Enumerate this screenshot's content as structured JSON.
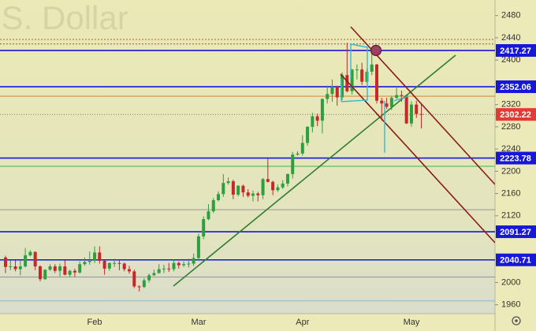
{
  "chart_data": {
    "type": "candlestick",
    "watermark": ".S. Dollar",
    "categories": [
      null,
      null,
      null,
      null,
      null,
      null,
      null,
      null,
      null,
      null,
      null,
      null,
      null,
      null,
      null,
      null,
      null,
      null,
      "Feb",
      null,
      null,
      null,
      null,
      null,
      null,
      null,
      null,
      null,
      null,
      null,
      null,
      null,
      null,
      null,
      null,
      null,
      null,
      null,
      null,
      "Mar",
      null,
      null,
      null,
      null,
      null,
      null,
      null,
      null,
      null,
      null,
      null,
      null,
      null,
      null,
      null,
      null,
      null,
      null,
      null,
      null,
      "Apr",
      null,
      null,
      null,
      null,
      null,
      null,
      null,
      null,
      null,
      null,
      null,
      null,
      null,
      null,
      null,
      null,
      null,
      null,
      null,
      null,
      null,
      "May",
      null,
      null
    ],
    "open": [
      2045,
      2028,
      2029,
      2024,
      2029,
      2049,
      2055,
      2029,
      2006,
      2023,
      2029,
      2021,
      2029,
      2014,
      2021,
      2018,
      2033,
      2037,
      2039,
      2054,
      2039,
      2025,
      2035,
      2035,
      2034,
      2024,
      2020,
      1993,
      1992,
      2004,
      2013,
      2017,
      2024,
      2025,
      2024,
      2035,
      2031,
      2033,
      2034,
      2044,
      2083,
      2114,
      2128,
      2148,
      2159,
      2179,
      2182,
      2158,
      2174,
      2162,
      2156,
      2160,
      2157,
      2186,
      2181,
      2166,
      2171,
      2178,
      2195,
      2230,
      2232,
      2251,
      2280,
      2299,
      2291,
      2330,
      2339,
      2352,
      2333,
      2373,
      2344,
      2383,
      2383,
      2361,
      2379,
      2392,
      2327,
      2322,
      2316,
      2332,
      2337,
      2336,
      2286,
      2320,
      2303
    ],
    "high": [
      2048,
      2040,
      2040,
      2040,
      2062,
      2058,
      2056,
      2031,
      2024,
      2033,
      2033,
      2034,
      2040,
      2023,
      2025,
      2038,
      2045,
      2056,
      2065,
      2065,
      2040,
      2036,
      2043,
      2040,
      2036,
      2030,
      2023,
      1995,
      2008,
      2016,
      2023,
      2033,
      2032,
      2035,
      2041,
      2038,
      2038,
      2043,
      2052,
      2088,
      2119,
      2141,
      2152,
      2164,
      2195,
      2189,
      2185,
      2175,
      2176,
      2168,
      2165,
      2163,
      2188,
      2223,
      2183,
      2176,
      2184,
      2196,
      2235,
      2236,
      2265,
      2281,
      2305,
      2304,
      2331,
      2354,
      2365,
      2354,
      2378,
      2431,
      2384,
      2392,
      2395,
      2385,
      2418,
      2393,
      2332,
      2332,
      2336,
      2352,
      2345,
      2337,
      2326,
      2327,
      2322
    ],
    "low": [
      2017,
      2022,
      2020,
      2013,
      2027,
      2047,
      2022,
      2002,
      2005,
      2021,
      2017,
      2011,
      2013,
      2010,
      2010,
      2016,
      2030,
      2032,
      2035,
      2034,
      2014,
      2021,
      2028,
      2022,
      2020,
      2016,
      1990,
      1984,
      1990,
      2000,
      2012,
      2016,
      2017,
      2019,
      2020,
      2025,
      2028,
      2027,
      2030,
      2039,
      2078,
      2112,
      2125,
      2146,
      2154,
      2176,
      2150,
      2155,
      2154,
      2153,
      2146,
      2146,
      2150,
      2180,
      2157,
      2163,
      2168,
      2173,
      2187,
      2228,
      2228,
      2246,
      2270,
      2281,
      2268,
      2322,
      2325,
      2318,
      2328,
      2342,
      2338,
      2365,
      2355,
      2359,
      2373,
      2322,
      2291,
      2312,
      2310,
      2330,
      2325,
      2285,
      2280,
      2296,
      2277
    ],
    "close": [
      2028,
      2029,
      2024,
      2029,
      2049,
      2055,
      2029,
      2006,
      2023,
      2029,
      2021,
      2029,
      2014,
      2021,
      2018,
      2033,
      2037,
      2039,
      2054,
      2039,
      2025,
      2035,
      2035,
      2034,
      2024,
      2020,
      1993,
      1992,
      2004,
      2013,
      2017,
      2024,
      2025,
      2024,
      2035,
      2031,
      2033,
      2034,
      2044,
      2083,
      2114,
      2128,
      2148,
      2159,
      2179,
      2182,
      2158,
      2174,
      2162,
      2156,
      2160,
      2157,
      2186,
      2181,
      2166,
      2171,
      2178,
      2195,
      2230,
      2232,
      2251,
      2280,
      2299,
      2291,
      2330,
      2339,
      2352,
      2333,
      2373,
      2344,
      2383,
      2383,
      2361,
      2379,
      2392,
      2327,
      2322,
      2316,
      2332,
      2337,
      2336,
      2286,
      2320,
      2303,
      2302
    ],
    "up_color": "#2e9e3f",
    "down_color": "#c62828",
    "ylim": [
      1944,
      2508
    ],
    "yticks": [
      1960,
      2000,
      2120,
      2160,
      2200,
      2240,
      2280,
      2320,
      2400,
      2440,
      2480
    ],
    "grid": false,
    "levels": [
      {
        "value": 2417.27,
        "color": "#1717d9"
      },
      {
        "value": 2352.06,
        "color": "#1717d9"
      },
      {
        "value": 2223.78,
        "color": "#1717d9"
      },
      {
        "value": 2091.27,
        "color": "#1717d9"
      },
      {
        "value": 2040.71,
        "color": "#1717d9"
      }
    ],
    "last_price": {
      "value": 2302.22,
      "color": "#e53935"
    },
    "guide_levels": [
      {
        "value": 2437,
        "color": "#a0522d"
      },
      {
        "value": 2429,
        "color": "#a0522d"
      },
      {
        "value": 2335,
        "color": "#e07020"
      },
      {
        "value": 2209,
        "color": "#4caf50"
      },
      {
        "value": 2131,
        "color": "#8a8a8a"
      },
      {
        "value": 2010,
        "color": "#8a8a8a"
      },
      {
        "value": 1967,
        "color": "#7fb3d5"
      }
    ]
  }
}
